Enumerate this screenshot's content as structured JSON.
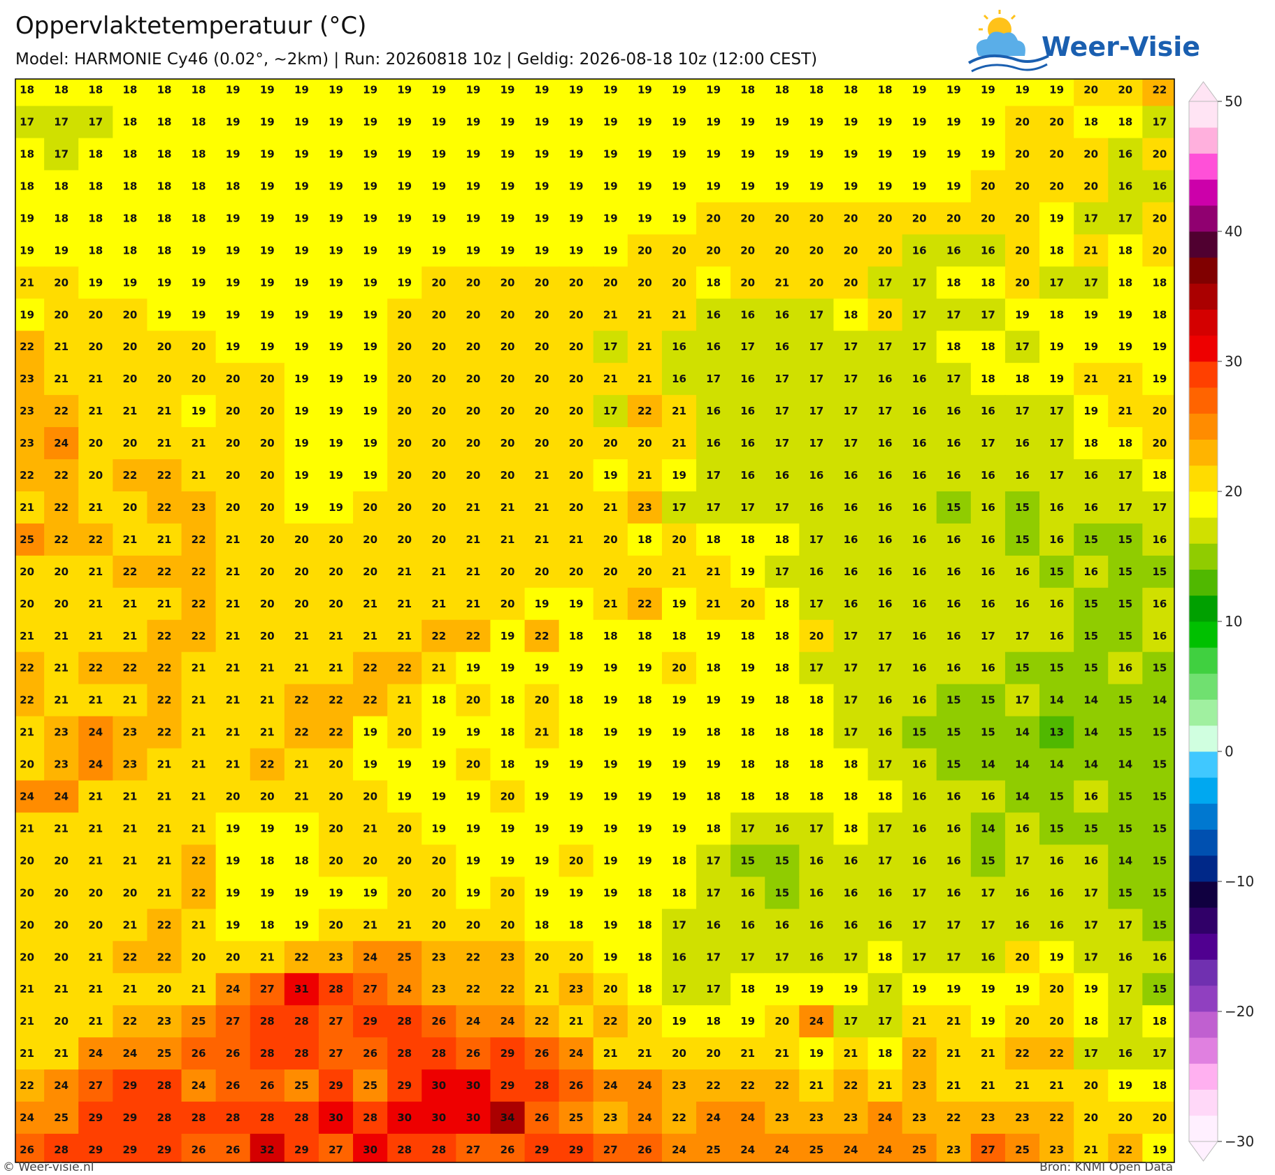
{
  "header": {
    "title": "Oppervlaktetemperatuur (°C)",
    "subtitle": "Model: HARMONIE Cy46 (0.02°, ~2km)  |  Run: 20260818 10z  |  Geldig: 2026-08-18 10z (12:00 CEST)"
  },
  "logo": "Weer-Visie",
  "map": {
    "rows": [
      [
        18,
        18,
        18,
        18,
        18,
        18,
        19,
        19,
        19,
        19,
        19,
        19,
        19,
        19,
        19,
        19,
        19,
        19,
        19,
        19,
        19,
        18,
        18,
        18,
        18,
        18,
        19,
        19,
        19,
        19,
        19,
        20,
        20,
        22
      ],
      [
        17,
        17,
        17,
        18,
        18,
        18,
        19,
        19,
        19,
        19,
        19,
        19,
        19,
        19,
        19,
        19,
        19,
        19,
        19,
        19,
        19,
        19,
        19,
        19,
        19,
        19,
        19,
        19,
        19,
        20,
        20,
        18,
        18,
        17
      ],
      [
        18,
        17,
        18,
        18,
        18,
        18,
        19,
        19,
        19,
        19,
        19,
        19,
        19,
        19,
        19,
        19,
        19,
        19,
        19,
        19,
        19,
        19,
        19,
        19,
        19,
        19,
        19,
        19,
        19,
        20,
        20,
        20,
        16,
        20
      ],
      [
        18,
        18,
        18,
        18,
        18,
        18,
        18,
        19,
        19,
        19,
        19,
        19,
        19,
        19,
        19,
        19,
        19,
        19,
        19,
        19,
        19,
        19,
        19,
        19,
        19,
        19,
        19,
        19,
        20,
        20,
        20,
        20,
        16,
        16
      ],
      [
        19,
        18,
        18,
        18,
        18,
        18,
        19,
        19,
        19,
        19,
        19,
        19,
        19,
        19,
        19,
        19,
        19,
        19,
        19,
        19,
        20,
        20,
        20,
        20,
        20,
        20,
        20,
        20,
        20,
        20,
        19,
        17,
        17,
        20
      ],
      [
        19,
        19,
        18,
        18,
        18,
        19,
        19,
        19,
        19,
        19,
        19,
        19,
        19,
        19,
        19,
        19,
        19,
        19,
        20,
        20,
        20,
        20,
        20,
        20,
        20,
        20,
        16,
        16,
        16,
        20,
        18,
        21,
        18,
        20
      ],
      [
        21,
        20,
        19,
        19,
        19,
        19,
        19,
        19,
        19,
        19,
        19,
        19,
        20,
        20,
        20,
        20,
        20,
        20,
        20,
        20,
        18,
        20,
        21,
        20,
        20,
        17,
        17,
        18,
        18,
        20,
        17,
        17,
        18,
        18
      ],
      [
        19,
        20,
        20,
        20,
        19,
        19,
        19,
        19,
        19,
        19,
        19,
        20,
        20,
        20,
        20,
        20,
        20,
        21,
        21,
        21,
        16,
        16,
        16,
        17,
        18,
        20,
        17,
        17,
        17,
        19,
        18,
        19,
        19,
        18
      ],
      [
        22,
        21,
        20,
        20,
        20,
        20,
        19,
        19,
        19,
        19,
        19,
        20,
        20,
        20,
        20,
        20,
        20,
        17,
        21,
        16,
        16,
        17,
        16,
        17,
        17,
        17,
        17,
        18,
        18,
        17,
        19,
        19,
        19,
        19
      ],
      [
        23,
        21,
        21,
        20,
        20,
        20,
        20,
        20,
        19,
        19,
        19,
        20,
        20,
        20,
        20,
        20,
        20,
        21,
        21,
        16,
        17,
        16,
        17,
        17,
        17,
        16,
        16,
        17,
        18,
        18,
        19,
        21,
        21,
        19
      ],
      [
        23,
        22,
        21,
        21,
        21,
        19,
        20,
        20,
        19,
        19,
        19,
        20,
        20,
        20,
        20,
        20,
        20,
        17,
        22,
        21,
        16,
        16,
        17,
        17,
        17,
        17,
        16,
        16,
        16,
        17,
        17,
        19,
        21,
        20
      ],
      [
        23,
        24,
        20,
        20,
        21,
        21,
        20,
        20,
        19,
        19,
        19,
        20,
        20,
        20,
        20,
        20,
        20,
        20,
        20,
        21,
        16,
        16,
        17,
        17,
        17,
        16,
        16,
        16,
        17,
        16,
        17,
        18,
        18,
        20
      ],
      [
        22,
        22,
        20,
        22,
        22,
        21,
        20,
        20,
        19,
        19,
        19,
        20,
        20,
        20,
        20,
        21,
        20,
        19,
        21,
        19,
        17,
        16,
        16,
        16,
        16,
        16,
        16,
        16,
        16,
        16,
        17,
        16,
        17,
        18
      ],
      [
        21,
        22,
        21,
        20,
        22,
        23,
        20,
        20,
        19,
        19,
        20,
        20,
        20,
        21,
        21,
        21,
        20,
        21,
        23,
        17,
        17,
        17,
        17,
        16,
        16,
        16,
        16,
        15,
        16,
        15,
        16,
        16,
        17,
        17
      ],
      [
        25,
        22,
        22,
        21,
        21,
        22,
        21,
        20,
        20,
        20,
        20,
        20,
        20,
        21,
        21,
        21,
        21,
        20,
        18,
        20,
        18,
        18,
        18,
        17,
        16,
        16,
        16,
        16,
        16,
        15,
        16,
        15,
        15,
        16
      ],
      [
        20,
        20,
        21,
        22,
        22,
        22,
        21,
        20,
        20,
        20,
        20,
        21,
        21,
        21,
        20,
        20,
        20,
        20,
        20,
        21,
        21,
        19,
        17,
        16,
        16,
        16,
        16,
        16,
        16,
        16,
        15,
        16,
        15,
        15
      ],
      [
        20,
        20,
        21,
        21,
        21,
        22,
        21,
        20,
        20,
        20,
        21,
        21,
        21,
        21,
        20,
        19,
        19,
        21,
        22,
        19,
        21,
        20,
        18,
        17,
        16,
        16,
        16,
        16,
        16,
        16,
        16,
        15,
        15,
        16
      ],
      [
        21,
        21,
        21,
        21,
        22,
        22,
        21,
        20,
        21,
        21,
        21,
        21,
        22,
        22,
        19,
        22,
        18,
        18,
        18,
        18,
        19,
        18,
        18,
        20,
        17,
        17,
        16,
        16,
        17,
        17,
        16,
        15,
        15,
        16
      ],
      [
        22,
        21,
        22,
        22,
        22,
        21,
        21,
        21,
        21,
        21,
        22,
        22,
        21,
        19,
        19,
        19,
        19,
        19,
        19,
        20,
        18,
        19,
        18,
        17,
        17,
        17,
        16,
        16,
        16,
        15,
        15,
        15,
        16,
        15
      ],
      [
        22,
        21,
        21,
        21,
        22,
        21,
        21,
        21,
        22,
        22,
        22,
        21,
        18,
        20,
        18,
        20,
        18,
        19,
        18,
        19,
        19,
        19,
        18,
        18,
        17,
        16,
        16,
        15,
        15,
        17,
        14,
        14,
        15,
        14
      ],
      [
        21,
        23,
        24,
        23,
        22,
        21,
        21,
        21,
        22,
        22,
        19,
        20,
        19,
        19,
        18,
        21,
        18,
        19,
        19,
        19,
        18,
        18,
        18,
        18,
        17,
        16,
        15,
        15,
        15,
        14,
        13,
        14,
        15,
        15
      ],
      [
        20,
        23,
        24,
        23,
        21,
        21,
        21,
        22,
        21,
        20,
        19,
        19,
        19,
        20,
        18,
        19,
        19,
        19,
        19,
        19,
        19,
        18,
        18,
        18,
        18,
        17,
        16,
        15,
        14,
        14,
        14,
        14,
        14,
        15
      ],
      [
        24,
        24,
        21,
        21,
        21,
        21,
        20,
        20,
        21,
        20,
        20,
        19,
        19,
        19,
        20,
        19,
        19,
        19,
        19,
        19,
        18,
        18,
        18,
        18,
        18,
        18,
        16,
        16,
        16,
        14,
        15,
        16,
        15,
        15
      ],
      [
        21,
        21,
        21,
        21,
        21,
        21,
        19,
        19,
        19,
        20,
        21,
        20,
        19,
        19,
        19,
        19,
        19,
        19,
        19,
        19,
        18,
        17,
        16,
        17,
        18,
        17,
        16,
        16,
        14,
        16,
        15,
        15,
        15,
        15
      ],
      [
        20,
        20,
        21,
        21,
        21,
        22,
        19,
        18,
        18,
        20,
        20,
        20,
        20,
        19,
        19,
        19,
        20,
        19,
        19,
        18,
        17,
        15,
        15,
        16,
        16,
        17,
        16,
        16,
        15,
        17,
        16,
        16,
        14,
        15
      ],
      [
        20,
        20,
        20,
        20,
        21,
        22,
        19,
        19,
        19,
        19,
        19,
        20,
        20,
        19,
        20,
        19,
        19,
        19,
        18,
        18,
        17,
        16,
        15,
        16,
        16,
        16,
        17,
        16,
        17,
        16,
        16,
        17,
        15,
        15
      ],
      [
        20,
        20,
        20,
        21,
        22,
        21,
        19,
        18,
        19,
        20,
        21,
        21,
        20,
        20,
        20,
        18,
        18,
        19,
        18,
        17,
        16,
        16,
        16,
        16,
        16,
        16,
        17,
        17,
        17,
        16,
        16,
        17,
        17,
        15
      ],
      [
        20,
        20,
        21,
        22,
        22,
        20,
        20,
        21,
        22,
        23,
        24,
        25,
        23,
        22,
        23,
        20,
        20,
        19,
        18,
        16,
        17,
        17,
        17,
        16,
        17,
        18,
        17,
        17,
        16,
        20,
        19,
        17,
        16,
        16
      ],
      [
        21,
        21,
        21,
        21,
        20,
        21,
        24,
        27,
        31,
        28,
        27,
        24,
        23,
        22,
        22,
        21,
        23,
        20,
        18,
        17,
        17,
        18,
        19,
        19,
        19,
        17,
        19,
        19,
        19,
        19,
        20,
        19,
        17,
        15
      ],
      [
        21,
        20,
        21,
        22,
        23,
        25,
        27,
        28,
        28,
        27,
        29,
        28,
        26,
        24,
        24,
        22,
        21,
        22,
        20,
        19,
        18,
        19,
        20,
        24,
        17,
        17,
        21,
        21,
        19,
        20,
        20,
        18,
        17,
        18
      ],
      [
        21,
        21,
        24,
        24,
        25,
        26,
        26,
        28,
        28,
        27,
        26,
        28,
        28,
        26,
        29,
        26,
        24,
        21,
        21,
        20,
        20,
        21,
        21,
        19,
        21,
        18,
        22,
        21,
        21,
        22,
        22,
        17,
        16,
        17
      ],
      [
        22,
        24,
        27,
        29,
        28,
        24,
        26,
        26,
        25,
        29,
        25,
        29,
        30,
        30,
        29,
        28,
        26,
        24,
        24,
        23,
        22,
        22,
        22,
        21,
        22,
        21,
        23,
        21,
        21,
        21,
        21,
        20,
        19,
        18
      ],
      [
        24,
        25,
        29,
        29,
        28,
        28,
        28,
        28,
        28,
        30,
        28,
        30,
        30,
        30,
        34,
        26,
        25,
        23,
        24,
        22,
        24,
        24,
        23,
        23,
        23,
        24,
        23,
        22,
        23,
        23,
        22,
        20,
        20,
        20
      ],
      [
        26,
        28,
        29,
        29,
        29,
        26,
        26,
        32,
        29,
        27,
        30,
        28,
        28,
        27,
        26,
        29,
        29,
        27,
        26,
        24,
        25,
        24,
        24,
        25,
        24,
        24,
        25,
        23,
        27,
        25,
        23,
        21,
        22,
        19
      ]
    ]
  },
  "colorbar": {
    "range": [
      -30,
      50
    ],
    "ticks": [
      50,
      40,
      30,
      20,
      10,
      0,
      {
        "value": -10,
        "label": "−10"
      },
      {
        "value": -20,
        "label": "−20"
      },
      {
        "value": -30,
        "label": "−30"
      }
    ],
    "colors": [
      "#fff0ff",
      "#ffd8f8",
      "#ffb0f0",
      "#e080e0",
      "#c060d0",
      "#9040c0",
      "#7030b0",
      "#500090",
      "#300068",
      "#100040",
      "#002888",
      "#0050b0",
      "#0078d0",
      "#00a8f0",
      "#40c8ff",
      "#d0ffe0",
      "#a0f0a0",
      "#70e070",
      "#40d040",
      "#00c000",
      "#00a000",
      "#50b800",
      "#90cc00",
      "#d0e000",
      "#ffff00",
      "#ffdc00",
      "#ffb400",
      "#ff8c00",
      "#ff6400",
      "#ff4000",
      "#ee0000",
      "#d40000",
      "#aa0000",
      "#800000",
      "#500030",
      "#900070",
      "#cc00aa",
      "#ff50d8",
      "#ffb0dd",
      "#ffe4f4"
    ]
  },
  "footer": {
    "left": "© Weer-visie.nl",
    "right": "Bron: KNMI Open Data"
  }
}
